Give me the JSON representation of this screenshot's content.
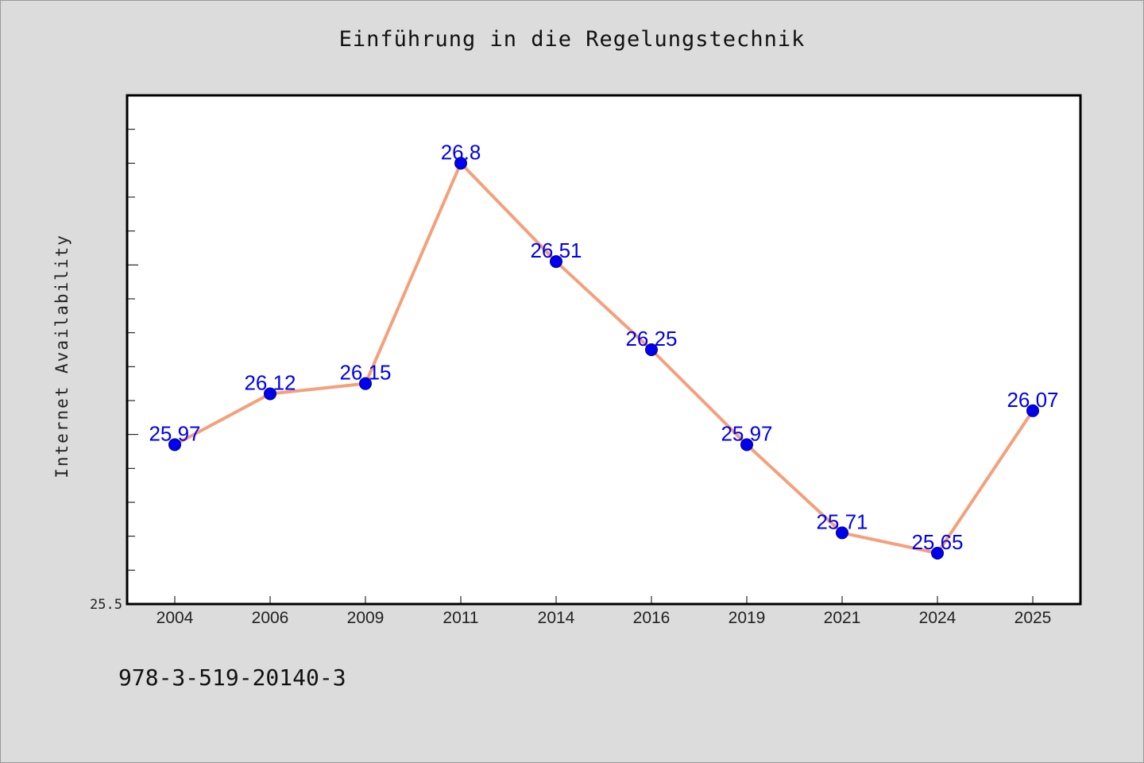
{
  "chart_data": {
    "type": "line",
    "title": "Einführung in die Regelungstechnik",
    "xlabel": "",
    "ylabel": "Internet Availability",
    "categories": [
      "2004",
      "2006",
      "2009",
      "2011",
      "2014",
      "2016",
      "2019",
      "2021",
      "2024",
      "2025"
    ],
    "series": [
      {
        "values": [
          25.97,
          26.12,
          26.15,
          26.8,
          26.51,
          26.25,
          25.97,
          25.71,
          25.65,
          26.07
        ],
        "data_labels": [
          "25.97",
          "26.12",
          "26.15",
          "26.8",
          "26.51",
          "26.25",
          "25.97",
          "25.71",
          "25.65",
          "26.07"
        ],
        "line_color": "#f4a07a",
        "marker_color": "#0000ee",
        "label_color": "#0000ee"
      }
    ],
    "y_tick_labels": [
      "25.5"
    ],
    "ylim": [
      25.5,
      27.0
    ],
    "grid": false,
    "legend": "none"
  },
  "footer": {
    "isbn": "978-3-519-20140-3"
  }
}
